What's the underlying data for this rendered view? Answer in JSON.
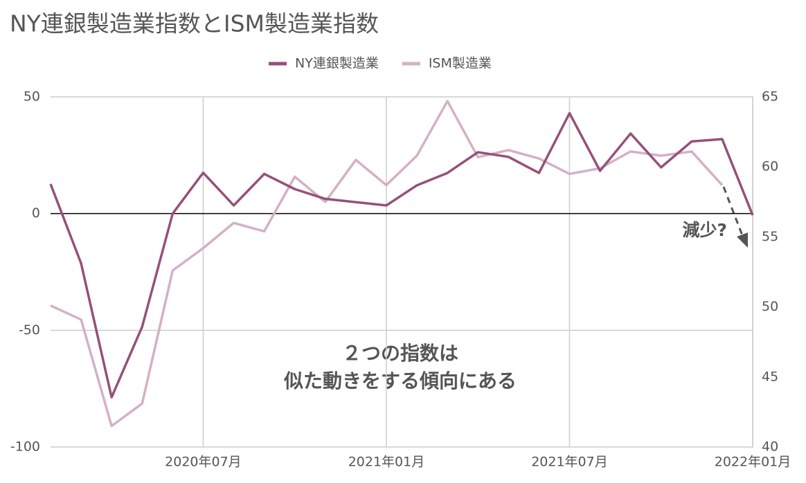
{
  "chart_data": {
    "type": "line",
    "title": "NY連銀製造業指数とISM製造業指数",
    "categories": [
      null,
      null,
      null,
      null,
      null,
      "2020年07月",
      null,
      null,
      null,
      null,
      null,
      "2021年01月",
      null,
      null,
      null,
      null,
      null,
      "2021年07月",
      null,
      null,
      null,
      null,
      null,
      "2022年01月"
    ],
    "series": [
      {
        "name": "NY連銀製造業",
        "color": "#96507a",
        "axis": "y",
        "values": [
          12.7,
          -21.3,
          -78.7,
          -48.5,
          0,
          17.5,
          3.5,
          17,
          10.5,
          6.3,
          4.9,
          3.5,
          12.1,
          17.4,
          26.3,
          24.3,
          17.4,
          43,
          18.3,
          34.3,
          19.8,
          30.9,
          31.9,
          -0.7
        ]
      },
      {
        "name": "ISM製造業",
        "color": "#d4b0c6",
        "axis": "y2",
        "values": [
          50.1,
          49.1,
          41.5,
          43.1,
          52.6,
          54.2,
          56.0,
          55.4,
          59.3,
          57.5,
          60.5,
          58.7,
          60.8,
          64.7,
          60.7,
          61.2,
          60.6,
          59.5,
          59.9,
          61.1,
          60.8,
          61.1,
          58.7,
          null
        ]
      }
    ],
    "ylim": [
      -100,
      50
    ],
    "yticks": [
      -100,
      -50,
      0,
      50
    ],
    "y2lim": [
      40,
      65
    ],
    "y2ticks": [
      40,
      45,
      50,
      55,
      60,
      65
    ],
    "grid": true,
    "legend": "top",
    "annotations": [
      "減少?",
      "２つの指数は",
      "似た動きをする傾向にある"
    ]
  }
}
